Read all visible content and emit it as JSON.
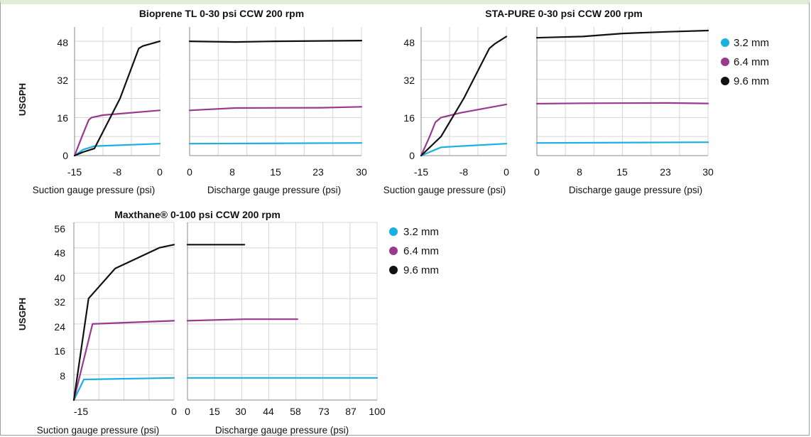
{
  "colors": {
    "s32": "#1ab0e0",
    "s64": "#9a3a8e",
    "s96": "#111111",
    "grid": "#d6d6d6",
    "axis": "#8a8a8a"
  },
  "legend": [
    "3.2 mm",
    "6.4 mm",
    "9.6 mm"
  ],
  "chart_data": [
    {
      "type": "line",
      "title": "Bioprene TL 0-30 psi CCW 200 rpm",
      "ylabel": "USGPH",
      "ylim": [
        0,
        54
      ],
      "yticks": [
        "0",
        "16",
        "32",
        "48"
      ],
      "suction": {
        "xlabel": "Suction gauge pressure (psi)",
        "xlim": [
          -15,
          0
        ],
        "xticks": [
          "-15",
          "-8",
          "0"
        ],
        "series": [
          {
            "name": "3.2 mm",
            "x": [
              -15,
              -13.5,
              -11.5,
              -8,
              0
            ],
            "y": [
              0,
              2.5,
              4,
              4.3,
              5
            ]
          },
          {
            "name": "6.4 mm",
            "x": [
              -15,
              -13.7,
              -12.5,
              -12,
              -10,
              0
            ],
            "y": [
              0,
              8,
              15,
              16,
              17,
              19
            ]
          },
          {
            "name": "9.6 mm",
            "x": [
              -15,
              -13.5,
              -11.5,
              -7,
              -3.7,
              -3,
              0
            ],
            "y": [
              0,
              1.5,
              3,
              24,
              45,
              46,
              48
            ]
          }
        ]
      },
      "discharge": {
        "xlabel": "Discharge gauge pressure (psi)",
        "xlim": [
          0,
          30
        ],
        "xticks": [
          "0",
          "8",
          "15",
          "23",
          "30"
        ],
        "series": [
          {
            "name": "3.2 mm",
            "x": [
              0,
              30
            ],
            "y": [
              5,
              5.3
            ]
          },
          {
            "name": "6.4 mm",
            "x": [
              0,
              8,
              23,
              30
            ],
            "y": [
              19,
              20,
              20.1,
              20.5
            ]
          },
          {
            "name": "9.6 mm",
            "x": [
              0,
              8,
              15,
              30
            ],
            "y": [
              48,
              47.7,
              48,
              48.3
            ]
          }
        ]
      }
    },
    {
      "type": "line",
      "title": "STA-PURE 0-30 psi CCW 200 rpm",
      "ylabel": "",
      "ylim": [
        0,
        54
      ],
      "yticks": [
        "0",
        "16",
        "32",
        "48"
      ],
      "suction": {
        "xlabel": "Suction gauge pressure (psi)",
        "xlim": [
          -15,
          0
        ],
        "xticks": [
          "-15",
          "-8",
          "0"
        ],
        "series": [
          {
            "name": "3.2 mm",
            "x": [
              -15,
              -11.5,
              -8,
              0
            ],
            "y": [
              0,
              3.5,
              4,
              5
            ]
          },
          {
            "name": "6.4 mm",
            "x": [
              -15,
              -13.5,
              -12.5,
              -11.5,
              -8,
              0
            ],
            "y": [
              0,
              8,
              14,
              16,
              18,
              21.5
            ]
          },
          {
            "name": "9.6 mm",
            "x": [
              -15,
              -11.5,
              -7.5,
              -3,
              -2,
              0
            ],
            "y": [
              0,
              8,
              24,
              45,
              47,
              50
            ]
          }
        ]
      },
      "discharge": {
        "xlabel": "Discharge gauge pressure (psi)",
        "xlim": [
          0,
          30
        ],
        "xticks": [
          "0",
          "8",
          "15",
          "23",
          "30"
        ],
        "series": [
          {
            "name": "3.2 mm",
            "x": [
              0,
              30
            ],
            "y": [
              5.3,
              5.6
            ]
          },
          {
            "name": "6.4 mm",
            "x": [
              0,
              8,
              23,
              30
            ],
            "y": [
              21.8,
              22,
              22.1,
              21.9
            ]
          },
          {
            "name": "9.6 mm",
            "x": [
              0,
              8,
              15,
              23,
              30
            ],
            "y": [
              49.5,
              50,
              51.3,
              52,
              52.5
            ]
          }
        ]
      }
    },
    {
      "type": "line",
      "title": "Maxthane® 0-100 psi CCW 200 rpm",
      "ylabel": "USGPH",
      "ylim": [
        0,
        56
      ],
      "yticks": [
        "8",
        "16",
        "24",
        "32",
        "40",
        "48",
        "56"
      ],
      "suction": {
        "xlabel": "Suction gauge pressure (psi)",
        "xlim": [
          -15,
          0
        ],
        "xticks": [
          "-15",
          "0"
        ],
        "series": [
          {
            "name": "3.2 mm",
            "x": [
              -15,
              -13.5,
              0
            ],
            "y": [
              0,
              6.5,
              7
            ]
          },
          {
            "name": "6.4 mm",
            "x": [
              -15,
              -12.2,
              0
            ],
            "y": [
              0,
              24,
              25
            ]
          },
          {
            "name": "9.6 mm",
            "x": [
              -15,
              -12.8,
              -8.8,
              -2.2,
              0
            ],
            "y": [
              0,
              32,
              41.5,
              48,
              49
            ]
          }
        ]
      },
      "discharge": {
        "xlabel": "Discharge gauge pressure (psi)",
        "xlim": [
          0,
          100
        ],
        "xticks": [
          "0",
          "15",
          "30",
          "44",
          "58",
          "73",
          "87",
          "100"
        ],
        "series": [
          {
            "name": "3.2 mm",
            "x": [
              0,
              100
            ],
            "y": [
              7,
              7
            ]
          },
          {
            "name": "6.4 mm",
            "x": [
              0,
              30,
              58
            ],
            "y": [
              25,
              25.5,
              25.5
            ]
          },
          {
            "name": "9.6 mm",
            "x": [
              0,
              30
            ],
            "y": [
              49,
              49
            ]
          }
        ]
      }
    }
  ]
}
